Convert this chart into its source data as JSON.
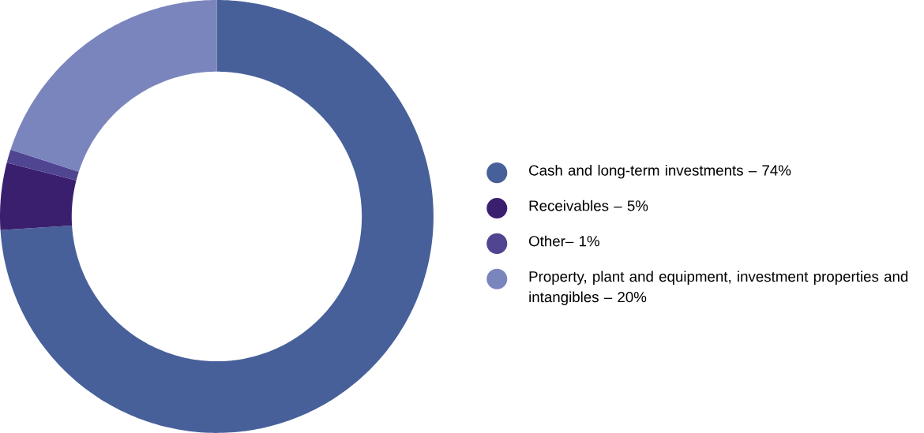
{
  "chart_data": {
    "type": "donut",
    "categories": [
      "Cash and long-term investments – 74%",
      "Receivables – 5%",
      "Other– 1%",
      "Property, plant and equipment, investment properties and intangibles – 20%"
    ],
    "values": [
      74,
      5,
      1,
      20
    ],
    "colors": [
      "#48609a",
      "#3a1f6e",
      "#4f4591",
      "#7b85bd"
    ],
    "legend": "right"
  }
}
